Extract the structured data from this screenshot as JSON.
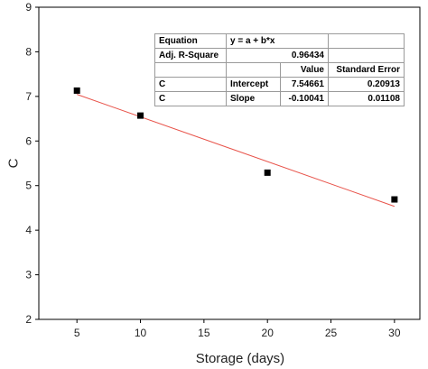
{
  "chart_data": {
    "type": "scatter",
    "xlabel": "Storage (days)",
    "ylabel": "C",
    "xlim": [
      2,
      32
    ],
    "ylim": [
      2,
      9
    ],
    "xticks": [
      5,
      10,
      15,
      20,
      25,
      30
    ],
    "yticks": [
      2,
      3,
      4,
      5,
      6,
      7,
      8,
      9
    ],
    "grid": false,
    "points": [
      {
        "x": 5,
        "y": 7.13
      },
      {
        "x": 10,
        "y": 6.57
      },
      {
        "x": 20,
        "y": 5.29
      },
      {
        "x": 30,
        "y": 4.69
      }
    ],
    "fit_line": {
      "x": [
        5,
        30
      ],
      "intercept": 7.54661,
      "slope": -0.10041,
      "color": "#e8534a"
    },
    "marker_color": "#000000"
  },
  "fit_table": {
    "equation_label": "Equation",
    "equation": "y = a + b*x",
    "adj_r_square_label": "Adj. R-Square",
    "adj_r_square": "0.96434",
    "header": [
      "",
      "",
      "Value",
      "Standard Error"
    ],
    "rows": [
      [
        "C",
        "Intercept",
        "7.54661",
        "0.20913"
      ],
      [
        "C",
        "Slope",
        "-0.10041",
        "0.01108"
      ]
    ]
  }
}
